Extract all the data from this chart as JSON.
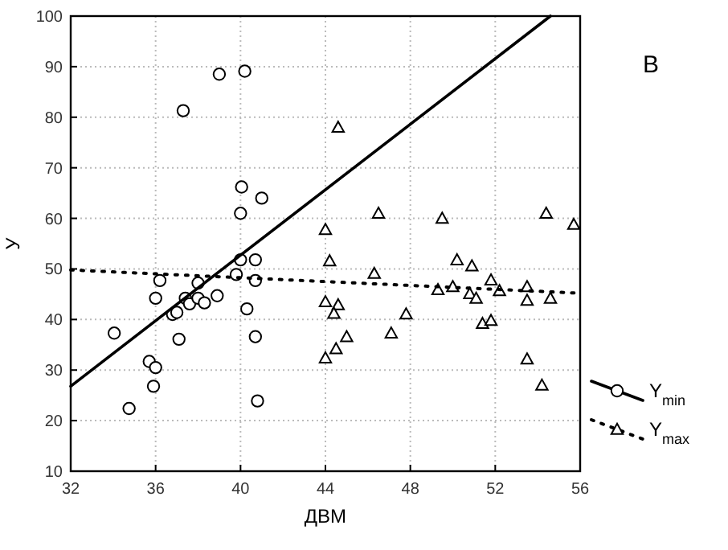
{
  "chart_data": {
    "type": "scatter",
    "xlabel": "ДВМ",
    "ylabel": "У",
    "annotations": [
      "В"
    ],
    "xlim": [
      32,
      56
    ],
    "xticks": [
      32,
      36,
      40,
      44,
      48,
      52,
      56
    ],
    "ylim": [
      10,
      100
    ],
    "yticks": [
      10,
      20,
      30,
      40,
      50,
      60,
      70,
      80,
      90,
      100
    ],
    "grid": true,
    "legend": "right",
    "series": [
      {
        "name": "Y$_{min}$",
        "marker": "circle",
        "line_style": "solid",
        "color": "#000000",
        "x": [
          34.05,
          34.75,
          35.7,
          36.0,
          35.9,
          36.0,
          36.2,
          36.8,
          37.0,
          37.1,
          37.3,
          37.4,
          37.6,
          38.0,
          38.0,
          38.3,
          38.9,
          39.0,
          39.8,
          40.0,
          40.0,
          40.05,
          40.2,
          40.3,
          40.7,
          40.7,
          40.7,
          40.8,
          41.0
        ],
        "values": [
          37.3,
          22.4,
          31.7,
          30.5,
          26.8,
          44.2,
          47.7,
          41.0,
          41.4,
          36.1,
          81.3,
          44.2,
          43.1,
          44.2,
          47.2,
          43.3,
          44.7,
          88.5,
          48.9,
          51.8,
          61.0,
          66.2,
          89.1,
          42.1,
          51.8,
          47.7,
          36.6,
          23.9,
          64.0
        ]
      },
      {
        "name": "Y$_{max}$",
        "marker": "triangle",
        "line_style": "dotted",
        "color": "#000000",
        "x": [
          44.6,
          44.0,
          44.2,
          44.0,
          44.6,
          44.4,
          45.0,
          44.5,
          44.0,
          46.5,
          46.3,
          47.8,
          47.1,
          49.5,
          49.3,
          50.0,
          50.2,
          50.8,
          50.9,
          51.1,
          51.4,
          51.8,
          51.8,
          52.2,
          53.5,
          53.5,
          53.5,
          54.2,
          54.4,
          54.6,
          55.7
        ],
        "values": [
          78.0,
          57.8,
          51.6,
          43.5,
          42.9,
          41.2,
          36.6,
          34.2,
          32.4,
          61.0,
          49.1,
          41.1,
          37.3,
          60.0,
          45.9,
          46.5,
          51.8,
          45.1,
          50.6,
          44.2,
          39.2,
          39.8,
          47.8,
          45.7,
          46.5,
          43.8,
          32.2,
          27.0,
          61.0,
          44.2,
          58.8
        ]
      },
      {
        "type": "line",
        "line_style": "solid",
        "color": "#000000",
        "x": [
          32,
          54.6
        ],
        "values": [
          26.8,
          100
        ]
      },
      {
        "type": "line",
        "line_style": "dotted",
        "color": "#000000",
        "x": [
          32,
          56
        ],
        "values": [
          49.8,
          45.2
        ]
      }
    ]
  }
}
